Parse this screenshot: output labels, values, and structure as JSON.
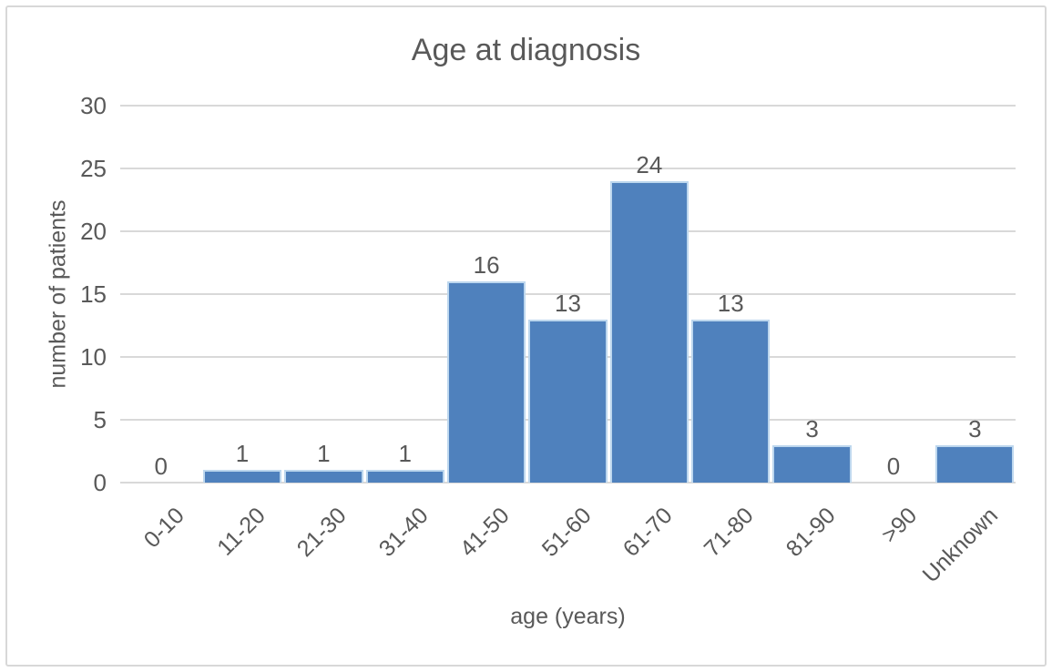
{
  "chart_data": {
    "type": "bar",
    "title": "Age at diagnosis",
    "xlabel": "age (years)",
    "ylabel": "number of patients",
    "categories": [
      "0-10",
      "11-20",
      "21-30",
      "31-40",
      "41-50",
      "51-60",
      "61-70",
      "71-80",
      "81-90",
      ">90",
      "Unknown"
    ],
    "values": [
      0,
      1,
      1,
      1,
      16,
      13,
      24,
      13,
      3,
      0,
      3
    ],
    "ylim": [
      0,
      30
    ],
    "yticks": [
      0,
      5,
      10,
      15,
      20,
      25,
      30
    ],
    "grid": "horizontal",
    "legend": "none",
    "data_labels": true,
    "x_tick_rotation": 45,
    "colors": {
      "bar_fill": "#4f81bd",
      "bar_border": "#bdd7ee",
      "gridline": "#d9d9d9",
      "text": "#595959",
      "frame_border": "#d8d8d8",
      "background": "#ffffff"
    }
  }
}
